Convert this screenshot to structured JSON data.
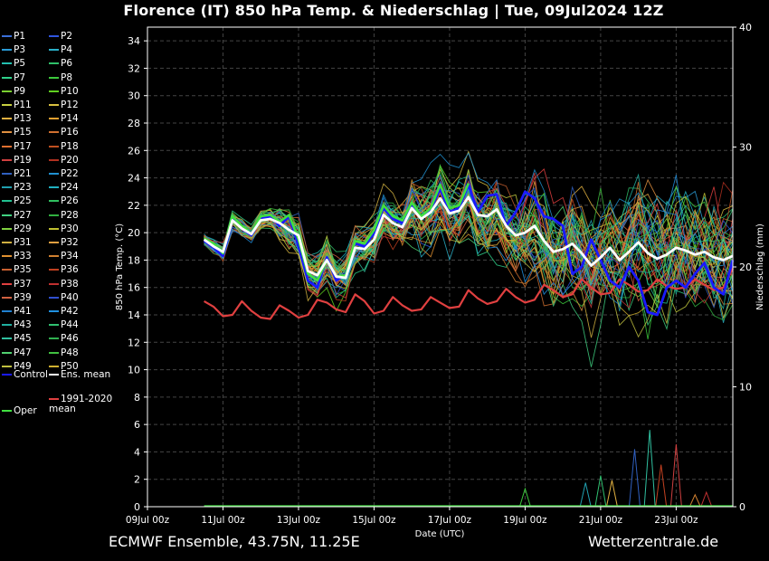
{
  "header": {
    "title": "Florence  (IT)  850 hPa Temp. & Niederschlag | Tue, 09Jul2024 12Z"
  },
  "footer": {
    "left": "ECMWF Ensemble, 43.75N, 11.25E",
    "right": "Wetterzentrale.de"
  },
  "legend": {
    "members": [
      "P1",
      "P2",
      "P3",
      "P4",
      "P5",
      "P6",
      "P7",
      "P8",
      "P9",
      "P10",
      "P11",
      "P12",
      "P13",
      "P14",
      "P15",
      "P16",
      "P17",
      "P18",
      "P19",
      "P20",
      "P21",
      "P22",
      "P23",
      "P24",
      "P25",
      "P26",
      "P27",
      "P28",
      "P29",
      "P30",
      "P31",
      "P32",
      "P33",
      "P34",
      "P35",
      "P36",
      "P37",
      "P38",
      "P39",
      "P40",
      "P41",
      "P42",
      "P43",
      "P44",
      "P45",
      "P46",
      "P47",
      "P48",
      "P49",
      "P50"
    ],
    "member_colors": [
      "#3a6fd8",
      "#2f55e0",
      "#2a9bd6",
      "#2ab0c8",
      "#23c0b0",
      "#2fc06a",
      "#2fd08a",
      "#3cc83c",
      "#7ad030",
      "#60d020",
      "#c8d040",
      "#d8c040",
      "#e0b040",
      "#e0a030",
      "#e09040",
      "#d07030",
      "#e07030",
      "#c05020",
      "#d04040",
      "#b03020",
      "#3060c0",
      "#2090d0",
      "#20a0b0",
      "#20b0c0",
      "#20c090",
      "#30c060",
      "#40d080",
      "#30b040",
      "#80d040",
      "#c0c030",
      "#d0b040",
      "#e0a040",
      "#e09030",
      "#d08030",
      "#c86030",
      "#c04020",
      "#e04040",
      "#c03030",
      "#d06040",
      "#3050d0",
      "#2080d0",
      "#2090e0",
      "#20b0a0",
      "#30c070",
      "#30c0a0",
      "#30b050",
      "#50d070",
      "#40c040",
      "#c0c040",
      "#d0b030"
    ],
    "control_label": "Control",
    "mean_label": "Ens. mean",
    "clim_label": "1991-2020 mean",
    "oper_label": "Oper",
    "control_color": "#1a1aff",
    "mean_color": "#ffffff",
    "clim_color": "#e04040",
    "oper_color": "#40e040"
  },
  "chart_data": {
    "type": "line",
    "xlabel": "Date (UTC)",
    "ylabel_left": "850 hPa Temp. (°C)",
    "ylabel_right": "Niederschlag (mm)",
    "x_ticks": [
      "09Jul 00z",
      "11Jul 00z",
      "13Jul 00z",
      "15Jul 00z",
      "17Jul 00z",
      "19Jul 00z",
      "21Jul 00z",
      "23Jul 00z"
    ],
    "x_range_days": [
      0,
      15.5
    ],
    "ylim_left": [
      0,
      35
    ],
    "y_ticks_left": [
      0,
      2,
      4,
      6,
      8,
      10,
      12,
      14,
      16,
      18,
      20,
      22,
      24,
      26,
      28,
      30,
      32,
      34
    ],
    "ylim_right": [
      0,
      40
    ],
    "y_ticks_right": [
      0,
      10,
      20,
      30,
      40
    ],
    "grid": true,
    "x_days": [
      1.5,
      1.75,
      2,
      2.25,
      2.5,
      2.75,
      3,
      3.25,
      3.5,
      3.75,
      4,
      4.25,
      4.5,
      4.75,
      5,
      5.25,
      5.5,
      5.75,
      6,
      6.25,
      6.5,
      6.75,
      7,
      7.25,
      7.5,
      7.75,
      8,
      8.25,
      8.5,
      8.75,
      9,
      9.25,
      9.5,
      9.75,
      10,
      10.25,
      10.5,
      10.75,
      11,
      11.25,
      11.5,
      11.75,
      12,
      12.25,
      12.5,
      12.75,
      13,
      13.25,
      13.5,
      13.75,
      14,
      14.25,
      14.5,
      14.75,
      15,
      15.25,
      15.5
    ],
    "control": [
      19.4,
      18.9,
      18.3,
      21.0,
      20.3,
      19.8,
      21.0,
      21.2,
      20.5,
      21.2,
      19.0,
      16.5,
      16.0,
      18.2,
      16.5,
      17.0,
      19.2,
      19.0,
      20.0,
      21.8,
      21.0,
      20.7,
      22.0,
      21.0,
      21.7,
      23.2,
      21.5,
      21.8,
      23.5,
      21.5,
      22.7,
      22.8,
      20.5,
      21.5,
      23.0,
      22.5,
      21.2,
      21.0,
      20.5,
      17.0,
      17.5,
      19.5,
      18.0,
      16.5,
      16.0,
      17.5,
      16.5,
      14.2,
      14.0,
      16.0,
      16.5,
      16.0,
      17.0,
      17.8,
      16.0,
      15.5,
      18.0
    ],
    "ens_mean": [
      19.5,
      19.0,
      18.6,
      20.9,
      20.3,
      19.9,
      20.9,
      21.0,
      20.7,
      20.2,
      19.8,
      17.2,
      16.9,
      18.0,
      16.8,
      16.7,
      18.9,
      18.8,
      19.5,
      21.3,
      20.7,
      20.4,
      21.8,
      21.0,
      21.5,
      22.5,
      21.4,
      21.6,
      22.6,
      21.3,
      21.2,
      21.7,
      20.5,
      19.8,
      20.0,
      20.5,
      19.4,
      18.6,
      18.8,
      19.2,
      18.5,
      17.6,
      18.2,
      18.9,
      18.0,
      18.6,
      19.3,
      18.5,
      18.1,
      18.4,
      18.9,
      18.7,
      18.4,
      18.6,
      18.2,
      18.0,
      18.3
    ],
    "clim_mean": [
      15.0,
      14.6,
      13.9,
      14.0,
      15.0,
      14.3,
      13.8,
      13.7,
      14.7,
      14.3,
      13.8,
      14.0,
      15.1,
      14.9,
      14.4,
      14.2,
      15.5,
      15.0,
      14.1,
      14.3,
      15.3,
      14.7,
      14.3,
      14.4,
      15.3,
      14.9,
      14.5,
      14.6,
      15.8,
      15.2,
      14.8,
      15.0,
      15.9,
      15.3,
      14.9,
      15.1,
      16.2,
      15.8,
      15.3,
      15.5,
      16.6,
      16.0,
      15.5,
      15.6,
      16.6,
      16.2,
      15.7,
      15.8,
      16.6,
      16.1,
      15.9,
      16.0,
      16.6,
      16.2,
      15.8,
      16.0,
      17.4
    ],
    "oper": [
      19.6,
      19.2,
      18.5,
      21.2,
      20.5,
      19.9,
      21.2,
      21.3,
      20.8,
      21.3,
      19.5,
      17.0,
      16.5,
      18.0,
      16.8,
      16.9,
      19.4,
      19.2,
      20.2,
      22.0,
      21.2,
      20.9,
      22.2,
      21.2,
      21.8,
      23.5,
      21.8,
      22.0,
      23.6
    ],
    "precip_spikes": [
      {
        "day": 13.3,
        "mm": 6.4,
        "member": "P45"
      },
      {
        "day": 14.0,
        "mm": 5.2,
        "member": "P19"
      },
      {
        "day": 12.9,
        "mm": 4.8,
        "member": "P21"
      },
      {
        "day": 13.6,
        "mm": 3.5,
        "member": "P36"
      },
      {
        "day": 12.0,
        "mm": 2.6,
        "member": "P44"
      },
      {
        "day": 11.6,
        "mm": 2.0,
        "member": "P23"
      },
      {
        "day": 10.0,
        "mm": 1.5,
        "member": "P8"
      },
      {
        "day": 12.3,
        "mm": 2.2,
        "member": "P13"
      },
      {
        "day": 14.8,
        "mm": 1.2,
        "member": "P38"
      },
      {
        "day": 14.5,
        "mm": 1.0,
        "member": "P34"
      }
    ]
  }
}
